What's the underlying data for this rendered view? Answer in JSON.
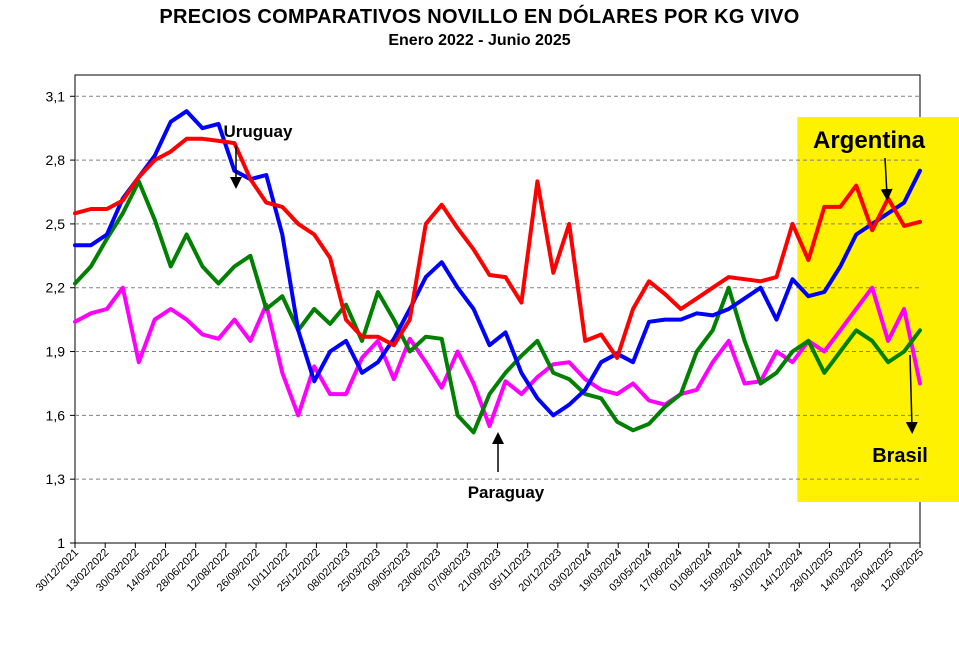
{
  "chart_data": {
    "type": "line",
    "title": "PRECIOS COMPARATIVOS NOVILLO EN DÓLARES POR KG  VIVO",
    "subtitle": "Enero  2022 -  Junio 2025",
    "xlabel": "",
    "ylabel": "",
    "ylim": [
      1,
      3.2
    ],
    "y_ticks": [
      "1",
      "1,3",
      "1,6",
      "1,9",
      "2,2",
      "2,5",
      "2,8",
      "3,1"
    ],
    "x_ticks": [
      "30/12/2021",
      "13/02/2022",
      "30/03/2022",
      "14/05/2022",
      "28/06/2022",
      "12/08/2022",
      "26/09/2022",
      "10/11/2022",
      "25/12/2022",
      "08/02/2023",
      "25/03/2023",
      "09/05/2023",
      "23/06/2023",
      "07/08/2023",
      "21/09/2023",
      "05/11/2023",
      "20/12/2023",
      "03/02/2024",
      "19/03/2024",
      "03/05/2024",
      "17/06/2024",
      "01/08/2024",
      "15/09/2024",
      "30/10/2024",
      "14/12/2024",
      "28/01/2025",
      "14/03/2025",
      "28/04/2025",
      "12/06/2025"
    ],
    "grid": "horizontal-dashed",
    "highlight_from_index": 24.0,
    "highlight_color": "#FFF200",
    "series": [
      {
        "name": "Argentina",
        "color": "#FF0000",
        "values": [
          2.55,
          2.57,
          2.57,
          2.61,
          2.72,
          2.8,
          2.84,
          2.9,
          2.9,
          2.89,
          2.88,
          2.71,
          2.6,
          2.58,
          2.5,
          2.45,
          2.34,
          2.05,
          1.97,
          1.97,
          1.93,
          2.05,
          2.5,
          2.59,
          2.48,
          2.38,
          2.26,
          2.25,
          2.13,
          2.7,
          2.27,
          2.5,
          1.95,
          1.98,
          1.87,
          2.1,
          2.23,
          2.17,
          2.1,
          2.15,
          2.2,
          2.25,
          2.24,
          2.23,
          2.25,
          2.5,
          2.33,
          2.58,
          2.58,
          2.68,
          2.47,
          2.62,
          2.49,
          2.51
        ]
      },
      {
        "name": "Uruguay",
        "color": "#0000FF",
        "values": [
          2.4,
          2.4,
          2.45,
          2.62,
          2.72,
          2.82,
          2.98,
          3.03,
          2.95,
          2.97,
          2.75,
          2.71,
          2.73,
          2.45,
          2.0,
          1.76,
          1.9,
          1.95,
          1.8,
          1.85,
          1.96,
          2.1,
          2.25,
          2.32,
          2.2,
          2.1,
          1.93,
          1.99,
          1.8,
          1.68,
          1.6,
          1.65,
          1.72,
          1.85,
          1.89,
          1.85,
          2.04,
          2.05,
          2.05,
          2.08,
          2.07,
          2.1,
          2.15,
          2.2,
          2.05,
          2.24,
          2.16,
          2.18,
          2.3,
          2.45,
          2.5,
          2.55,
          2.6,
          2.75
        ]
      },
      {
        "name": "Paraguay",
        "color": "#008000",
        "values": [
          2.22,
          2.3,
          2.43,
          2.55,
          2.7,
          2.52,
          2.3,
          2.45,
          2.3,
          2.22,
          2.3,
          2.35,
          2.1,
          2.16,
          2.0,
          2.1,
          2.03,
          2.12,
          1.95,
          2.18,
          2.05,
          1.9,
          1.97,
          1.96,
          1.6,
          1.52,
          1.7,
          1.8,
          1.88,
          1.95,
          1.8,
          1.77,
          1.7,
          1.68,
          1.57,
          1.53,
          1.56,
          1.64,
          1.7,
          1.9,
          2.0,
          2.2,
          1.95,
          1.75,
          1.8,
          1.9,
          1.95,
          1.8,
          1.9,
          2.0,
          1.95,
          1.85,
          1.9,
          2.0
        ]
      },
      {
        "name": "Brasil",
        "color": "#FF00FF",
        "values": [
          2.04,
          2.08,
          2.1,
          2.2,
          1.85,
          2.05,
          2.1,
          2.05,
          1.98,
          1.96,
          2.05,
          1.95,
          2.12,
          1.8,
          1.6,
          1.83,
          1.7,
          1.7,
          1.87,
          1.95,
          1.77,
          1.96,
          1.85,
          1.73,
          1.9,
          1.75,
          1.55,
          1.76,
          1.7,
          1.78,
          1.84,
          1.85,
          1.77,
          1.72,
          1.7,
          1.75,
          1.67,
          1.65,
          1.7,
          1.72,
          1.85,
          1.95,
          1.75,
          1.76,
          1.9,
          1.85,
          1.95,
          1.9,
          2.0,
          2.1,
          2.2,
          1.95,
          2.1,
          1.75
        ]
      }
    ],
    "annotations": [
      {
        "label": "Uruguay",
        "series": "Uruguay"
      },
      {
        "label": "Paraguay",
        "series": "Paraguay"
      },
      {
        "label": "Argentina",
        "series": "Argentina"
      },
      {
        "label": "Brasil",
        "series": "Brasil"
      }
    ]
  }
}
